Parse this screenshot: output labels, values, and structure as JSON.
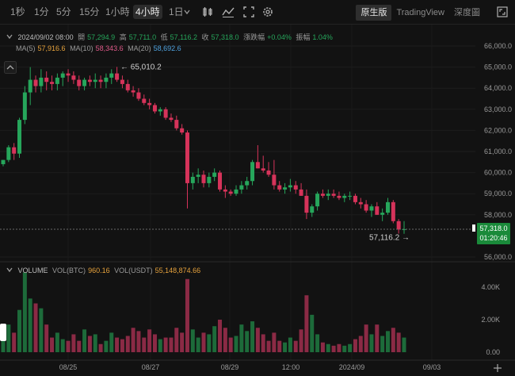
{
  "toolbar": {
    "timeframes": [
      "1秒",
      "1分",
      "5分",
      "15分",
      "1小時",
      "4小時",
      "1日"
    ],
    "active_timeframe": "4小時",
    "modes": [
      "原生版",
      "TradingView",
      "深度圖"
    ],
    "active_mode": "原生版"
  },
  "info": {
    "date": "2024/09/02 08:00",
    "open_label": "開",
    "open": "57,294.9",
    "high_label": "高",
    "high": "57,711.0",
    "low_label": "低",
    "low": "57,116.2",
    "close_label": "收",
    "close": "57,318.0",
    "change_label": "漲跌幅",
    "change": "+0.04%",
    "amp_label": "振幅",
    "amp": "1.04%",
    "ma5_label": "MA(5)",
    "ma5": "57,916.6",
    "ma10_label": "MA(10)",
    "ma10": "58,343.6",
    "ma20_label": "MA(20)",
    "ma20": "58,692.6"
  },
  "volume_info": {
    "volume_label": "VOLUME",
    "btc_label": "VOL(BTC)",
    "btc": "960.16",
    "usdt_label": "VOL(USDT)",
    "usdt": "55,148,874.66"
  },
  "annotations": {
    "high_marker": "65,010.2",
    "low_marker": "57,116.2",
    "last_price": "57,318.0",
    "countdown": "01:20:46"
  },
  "colors": {
    "up": "#26a65b",
    "down": "#d6335a",
    "vol_up": "#1d6b3a",
    "vol_down": "#8b2a45",
    "ma5": "#e6a23c",
    "ma10": "#e05a8a",
    "ma20": "#4fa3e0",
    "last_price_bg": "#1a8a3a"
  },
  "chart_data": {
    "type": "candlestick",
    "price_axis_ticks": [
      "66,000.0",
      "65,000.0",
      "64,000.0",
      "63,000.0",
      "62,000.0",
      "61,000.0",
      "60,000.0",
      "59,000.0",
      "58,000.0",
      "56,000.0"
    ],
    "price_range": [
      55900,
      66600
    ],
    "volume_axis_ticks": [
      "4.00K",
      "2.00K",
      "0.00"
    ],
    "volume_range": [
      0,
      5000
    ],
    "time_labels": [
      "08/25",
      "08/27",
      "08/29",
      "12:00",
      "2024/09",
      "09/03"
    ],
    "candles": [
      [
        60400,
        60600,
        60300,
        60600,
        1600
      ],
      [
        60600,
        61300,
        60500,
        61200,
        1700
      ],
      [
        61200,
        61400,
        60600,
        60900,
        1200
      ],
      [
        60900,
        62600,
        60700,
        62500,
        2600
      ],
      [
        62500,
        64100,
        62300,
        63800,
        4900
      ],
      [
        63800,
        65000,
        63200,
        64400,
        3300
      ],
      [
        64400,
        64600,
        63800,
        64100,
        3000
      ],
      [
        64100,
        64900,
        63800,
        64500,
        2700
      ],
      [
        64500,
        64800,
        63900,
        64300,
        1700
      ],
      [
        64300,
        64600,
        63900,
        64200,
        900
      ],
      [
        64200,
        64700,
        63900,
        64500,
        1200
      ],
      [
        64500,
        64800,
        64100,
        64700,
        800
      ],
      [
        64700,
        64900,
        64300,
        64600,
        700
      ],
      [
        64600,
        64800,
        64200,
        64400,
        1100
      ],
      [
        64400,
        64600,
        63900,
        64100,
        700
      ],
      [
        64100,
        64500,
        63900,
        64400,
        1400
      ],
      [
        64400,
        64600,
        64100,
        64300,
        1000
      ],
      [
        64300,
        64700,
        64000,
        64400,
        1100
      ],
      [
        64400,
        64600,
        64000,
        64300,
        500
      ],
      [
        64300,
        64700,
        64000,
        64500,
        700
      ],
      [
        64500,
        64900,
        64200,
        64700,
        1200
      ],
      [
        64700,
        65010,
        64300,
        64400,
        900
      ],
      [
        64400,
        64600,
        64000,
        64200,
        800
      ],
      [
        64200,
        64400,
        63800,
        63900,
        1000
      ],
      [
        63900,
        64100,
        63600,
        63800,
        1500
      ],
      [
        63800,
        64000,
        63400,
        63500,
        1300
      ],
      [
        63500,
        63700,
        63200,
        63300,
        900
      ],
      [
        63300,
        63500,
        63000,
        63200,
        1400
      ],
      [
        63200,
        63300,
        62800,
        62900,
        1100
      ],
      [
        62900,
        63100,
        62700,
        63000,
        800
      ],
      [
        63000,
        63100,
        62500,
        62600,
        900
      ],
      [
        62600,
        62800,
        62400,
        62500,
        900
      ],
      [
        62500,
        62700,
        62000,
        62100,
        1500
      ],
      [
        62100,
        62300,
        61800,
        61900,
        1200
      ],
      [
        61900,
        62000,
        58300,
        59500,
        4500
      ],
      [
        59500,
        60000,
        59200,
        59800,
        1400
      ],
      [
        59800,
        60200,
        59500,
        59900,
        900
      ],
      [
        59900,
        60100,
        59300,
        59500,
        1200
      ],
      [
        59500,
        60000,
        59300,
        59800,
        1100
      ],
      [
        59800,
        60200,
        59600,
        60000,
        1600
      ],
      [
        60000,
        60100,
        59100,
        59200,
        2000
      ],
      [
        59200,
        59400,
        58800,
        59100,
        1500
      ],
      [
        59100,
        59200,
        58900,
        59000,
        900
      ],
      [
        59000,
        59400,
        58900,
        59200,
        1000
      ],
      [
        59200,
        59600,
        59000,
        59400,
        1700
      ],
      [
        59400,
        59800,
        59200,
        59600,
        1300
      ],
      [
        59600,
        60600,
        59400,
        60500,
        1900
      ],
      [
        60500,
        61300,
        60200,
        60200,
        1500
      ],
      [
        60200,
        60800,
        60000,
        60100,
        1100
      ],
      [
        60100,
        60500,
        59800,
        59900,
        700
      ],
      [
        59900,
        60600,
        59200,
        59400,
        1200
      ],
      [
        59400,
        59600,
        59100,
        59200,
        700
      ],
      [
        59200,
        59500,
        59000,
        59300,
        600
      ],
      [
        59300,
        59700,
        59100,
        59400,
        900
      ],
      [
        59400,
        59600,
        59000,
        59200,
        700
      ],
      [
        59200,
        59500,
        58900,
        58900,
        1400
      ],
      [
        58900,
        59200,
        57800,
        58100,
        3500
      ],
      [
        58100,
        58500,
        57900,
        58400,
        2300
      ],
      [
        58400,
        59100,
        58200,
        59000,
        1100
      ],
      [
        59000,
        59200,
        58800,
        58900,
        600
      ],
      [
        58900,
        59200,
        58700,
        59000,
        500
      ],
      [
        59000,
        59200,
        58800,
        58900,
        400
      ],
      [
        58900,
        59100,
        58700,
        58800,
        500
      ],
      [
        58800,
        59000,
        58600,
        58900,
        400
      ],
      [
        58900,
        59100,
        58700,
        58900,
        500
      ],
      [
        58900,
        59000,
        58500,
        58600,
        800
      ],
      [
        58600,
        58800,
        58300,
        58500,
        1000
      ],
      [
        58500,
        58700,
        58100,
        58200,
        1700
      ],
      [
        58200,
        58500,
        57900,
        58400,
        1100
      ],
      [
        58400,
        58600,
        58000,
        58000,
        1700
      ],
      [
        58000,
        58300,
        57700,
        58100,
        1000
      ],
      [
        58100,
        58800,
        58000,
        58600,
        1300
      ],
      [
        58600,
        58700,
        57600,
        57700,
        1500
      ],
      [
        57700,
        57800,
        57110,
        57300,
        1200
      ],
      [
        57300,
        57700,
        57100,
        57318,
        900
      ]
    ]
  }
}
